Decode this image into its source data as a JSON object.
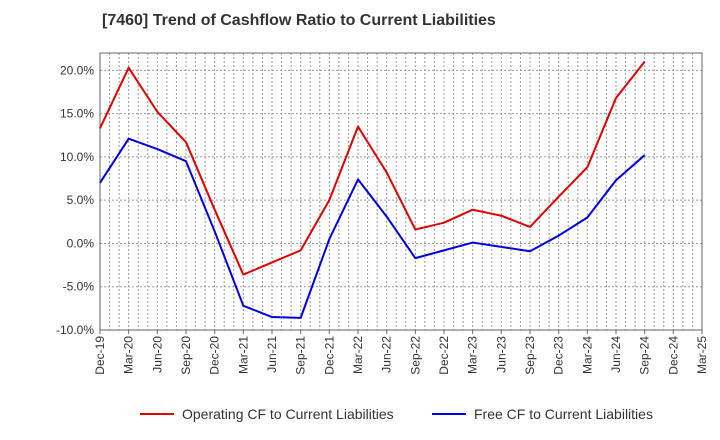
{
  "chart_data": {
    "type": "line",
    "title": "[7460]  Trend of Cashflow Ratio to Current Liabilities",
    "xlabel": "",
    "ylabel": "",
    "ylim": [
      -10,
      22
    ],
    "y_ticks": [
      -10,
      -5,
      0,
      5,
      10,
      15,
      20
    ],
    "y_tick_labels": [
      "-10.0%",
      "-5.0%",
      "0.0%",
      "5.0%",
      "10.0%",
      "15.0%",
      "20.0%"
    ],
    "x_tick_labels": [
      "Dec-19",
      "Mar-20",
      "Jun-20",
      "Sep-20",
      "Dec-20",
      "Mar-21",
      "Jun-21",
      "Sep-21",
      "Dec-21",
      "Mar-22",
      "Jun-22",
      "Sep-22",
      "Dec-22",
      "Mar-23",
      "Jun-23",
      "Sep-23",
      "Dec-23",
      "Mar-24",
      "Jun-24",
      "Sep-24",
      "Dec-24",
      "Mar-25"
    ],
    "x": [
      "Dec-19",
      "Mar-20",
      "Jun-20",
      "Sep-20",
      "Dec-20",
      "Mar-21",
      "Jun-21",
      "Sep-21",
      "Dec-21",
      "Mar-22",
      "Jun-22",
      "Sep-22",
      "Dec-22",
      "Mar-23",
      "Jun-23",
      "Sep-23",
      "Dec-23",
      "Mar-24",
      "Jun-24",
      "Sep-24",
      "Dec-24",
      "Mar-25"
    ],
    "grid": true,
    "legend_position": "bottom",
    "series": [
      {
        "name": "Operating CF to Current Liabilities",
        "color": "#e00000",
        "values": [
          13.3,
          20.3,
          15.2,
          11.7,
          3.9,
          -3.6,
          -2.2,
          -0.8,
          5.0,
          13.5,
          8.2,
          1.6,
          2.4,
          3.9,
          3.2,
          1.9,
          5.4,
          8.8,
          16.8,
          21.0,
          null,
          null
        ]
      },
      {
        "name": "Free CF to Current Liabilities",
        "color": "#0000e0",
        "values": [
          7.0,
          12.1,
          10.9,
          9.5,
          1.4,
          -7.2,
          -8.5,
          -8.6,
          0.5,
          7.4,
          3.1,
          -1.7,
          -0.8,
          0.1,
          -0.4,
          -0.9,
          0.9,
          3.0,
          7.3,
          10.2,
          null,
          null
        ]
      }
    ]
  }
}
